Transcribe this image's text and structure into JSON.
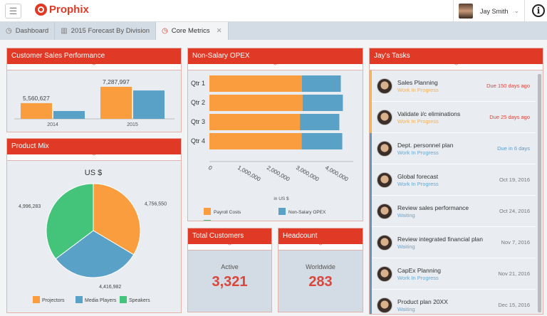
{
  "header": {
    "brand": "Prophix",
    "user_name": "Jay Smith",
    "menu_icon": "hamburger-icon",
    "info_icon": "info-icon"
  },
  "tabs": [
    {
      "label": "Dashboard",
      "icon": "dashboard-icon"
    },
    {
      "label": "2015 Forecast By Division",
      "icon": "bar-chart-icon"
    },
    {
      "label": "Core Metrics",
      "icon": "dashboard-icon",
      "active": true
    }
  ],
  "colors": {
    "accent": "#e03a27",
    "orange": "#f99d3e",
    "blue": "#5aa1c8",
    "green": "#44c47a"
  },
  "panels": {
    "sales": "Customer Sales Performance",
    "mix": "Product Mix",
    "opex": "Non-Salary OPEX",
    "customers": "Total Customers",
    "headcount": "Headcount",
    "tasks": "Jay's Tasks"
  },
  "chart_data": [
    {
      "type": "bar",
      "title": "Customer Sales Performance",
      "categories": [
        "2014",
        "2015"
      ],
      "series": [
        {
          "values": [
            5560627,
            7287997
          ]
        },
        {
          "values": [
            4730000,
            6900000
          ]
        }
      ],
      "data_labels": [
        "5,560,627",
        "7,287,997"
      ]
    },
    {
      "type": "pie",
      "title": "US $",
      "labels": [
        "Projectors",
        "Media Players",
        "Speakers"
      ],
      "values": [
        4756550,
        4416982,
        4996283
      ],
      "value_labels": [
        "4,756,550",
        "4,416,982",
        "4,996,283"
      ],
      "legend": "bottom"
    },
    {
      "type": "bar",
      "orientation": "horizontal",
      "stacked": true,
      "categories": [
        "Qtr 1",
        "Qtr 2",
        "Qtr 3",
        "Qtr 4"
      ],
      "xlabel": "in US $",
      "xticks": [
        "0",
        "1,000,000",
        "2,000,000",
        "3,000,000",
        "4,000,000"
      ],
      "xlim": [
        0,
        4900000
      ],
      "series": [
        {
          "name": "Payroll Costs",
          "values": [
            3170000,
            3190000,
            3100000,
            3160000
          ]
        },
        {
          "name": "Non-Salary OPEX",
          "values": [
            1330000,
            1380000,
            1350000,
            1390000
          ]
        },
        {
          "name": "Total Allocations",
          "values": [
            0,
            0,
            0,
            0
          ]
        }
      ],
      "legend": "bottom"
    }
  ],
  "kpis": {
    "customers_label": "Active",
    "customers_value": "3,321",
    "headcount_label": "Worldwide",
    "headcount_value": "283"
  },
  "tasks": [
    {
      "name": "Sales Planning",
      "status": "Work In Progress",
      "due": "Due 150 days ago",
      "tone": "late"
    },
    {
      "name": "Validate i/c eliminations",
      "status": "Work In Progress",
      "due": "Due 25 days ago",
      "tone": "late"
    },
    {
      "name": "Dept. personnel plan",
      "status": "Work In Progress",
      "due": "Due in 6 days",
      "tone": "soon"
    },
    {
      "name": "Global forecast",
      "status": "Work In Progress",
      "due": "Oct 19, 2016",
      "tone": "normal"
    },
    {
      "name": "Review sales performance",
      "status": "Waiting",
      "due": "Oct 24, 2016",
      "tone": "normal"
    },
    {
      "name": "Review integrated financial plan",
      "status": "Waiting",
      "due": "Nov 7, 2016",
      "tone": "normal"
    },
    {
      "name": "CapEx Planning",
      "status": "Work In Progress",
      "due": "Nov 21, 2016",
      "tone": "normal"
    },
    {
      "name": "Product plan 20XX",
      "status": "Waiting",
      "due": "Dec 15, 2016",
      "tone": "normal"
    }
  ]
}
